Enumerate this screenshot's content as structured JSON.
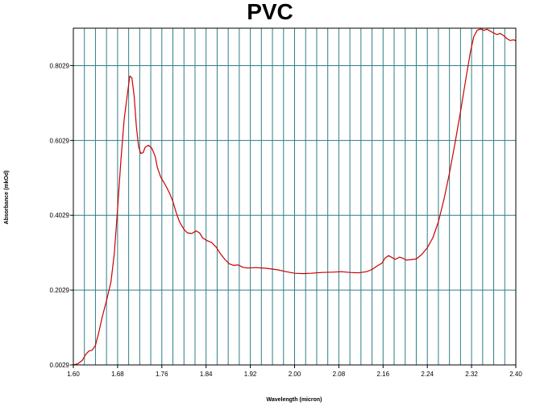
{
  "chart_data": {
    "type": "line",
    "title": "PVC",
    "xlabel": "Wavelength (micron)",
    "ylabel": "Absorbance (mkOd)",
    "xlim": [
      1.6,
      2.4
    ],
    "ylim": [
      0.0029,
      0.9029
    ],
    "x_ticks": [
      "1.60",
      "1.68",
      "1.76",
      "1.84",
      "1.92",
      "2.00",
      "2.08",
      "2.16",
      "2.24",
      "2.32",
      "2.40"
    ],
    "y_ticks": [
      "0.0029",
      "0.2029",
      "0.4029",
      "0.6029",
      "0.8029"
    ],
    "x_tick_values": [
      1.6,
      1.68,
      1.76,
      1.84,
      1.92,
      2.0,
      2.08,
      2.16,
      2.24,
      2.32,
      2.4
    ],
    "y_tick_values": [
      0.0029,
      0.2029,
      0.4029,
      0.6029,
      0.8029
    ],
    "x_minor_step": 0.02,
    "grid": true,
    "colors": {
      "line": "#cc0000",
      "grid": "#2e7f86",
      "frame": "#000000"
    },
    "series": [
      {
        "points": [
          [
            1.6,
            0.003
          ],
          [
            1.608,
            0.006
          ],
          [
            1.616,
            0.015
          ],
          [
            1.622,
            0.03
          ],
          [
            1.628,
            0.04
          ],
          [
            1.634,
            0.042
          ],
          [
            1.64,
            0.055
          ],
          [
            1.646,
            0.09
          ],
          [
            1.652,
            0.13
          ],
          [
            1.66,
            0.175
          ],
          [
            1.668,
            0.225
          ],
          [
            1.674,
            0.3
          ],
          [
            1.68,
            0.42
          ],
          [
            1.686,
            0.55
          ],
          [
            1.692,
            0.66
          ],
          [
            1.698,
            0.73
          ],
          [
            1.702,
            0.775
          ],
          [
            1.706,
            0.77
          ],
          [
            1.71,
            0.72
          ],
          [
            1.714,
            0.64
          ],
          [
            1.718,
            0.585
          ],
          [
            1.722,
            0.568
          ],
          [
            1.726,
            0.57
          ],
          [
            1.73,
            0.585
          ],
          [
            1.736,
            0.59
          ],
          [
            1.742,
            0.582
          ],
          [
            1.748,
            0.56
          ],
          [
            1.752,
            0.53
          ],
          [
            1.758,
            0.505
          ],
          [
            1.766,
            0.485
          ],
          [
            1.774,
            0.462
          ],
          [
            1.78,
            0.44
          ],
          [
            1.786,
            0.41
          ],
          [
            1.792,
            0.385
          ],
          [
            1.8,
            0.365
          ],
          [
            1.806,
            0.356
          ],
          [
            1.814,
            0.354
          ],
          [
            1.822,
            0.361
          ],
          [
            1.828,
            0.356
          ],
          [
            1.834,
            0.342
          ],
          [
            1.842,
            0.335
          ],
          [
            1.85,
            0.33
          ],
          [
            1.858,
            0.318
          ],
          [
            1.866,
            0.3
          ],
          [
            1.874,
            0.285
          ],
          [
            1.882,
            0.273
          ],
          [
            1.89,
            0.269
          ],
          [
            1.898,
            0.27
          ],
          [
            1.906,
            0.264
          ],
          [
            1.914,
            0.262
          ],
          [
            1.93,
            0.263
          ],
          [
            1.95,
            0.261
          ],
          [
            1.97,
            0.257
          ],
          [
            1.985,
            0.252
          ],
          [
            2.0,
            0.248
          ],
          [
            2.015,
            0.247
          ],
          [
            2.03,
            0.248
          ],
          [
            2.05,
            0.25
          ],
          [
            2.07,
            0.251
          ],
          [
            2.085,
            0.252
          ],
          [
            2.1,
            0.25
          ],
          [
            2.115,
            0.249
          ],
          [
            2.13,
            0.252
          ],
          [
            2.14,
            0.258
          ],
          [
            2.15,
            0.268
          ],
          [
            2.158,
            0.275
          ],
          [
            2.164,
            0.289
          ],
          [
            2.17,
            0.295
          ],
          [
            2.176,
            0.29
          ],
          [
            2.182,
            0.285
          ],
          [
            2.19,
            0.291
          ],
          [
            2.196,
            0.288
          ],
          [
            2.202,
            0.283
          ],
          [
            2.21,
            0.284
          ],
          [
            2.22,
            0.286
          ],
          [
            2.23,
            0.298
          ],
          [
            2.24,
            0.316
          ],
          [
            2.25,
            0.343
          ],
          [
            2.26,
            0.385
          ],
          [
            2.27,
            0.445
          ],
          [
            2.28,
            0.515
          ],
          [
            2.29,
            0.595
          ],
          [
            2.3,
            0.68
          ],
          [
            2.31,
            0.77
          ],
          [
            2.318,
            0.84
          ],
          [
            2.324,
            0.88
          ],
          [
            2.33,
            0.897
          ],
          [
            2.336,
            0.901
          ],
          [
            2.342,
            0.897
          ],
          [
            2.348,
            0.9
          ],
          [
            2.354,
            0.895
          ],
          [
            2.36,
            0.89
          ],
          [
            2.366,
            0.886
          ],
          [
            2.372,
            0.889
          ],
          [
            2.378,
            0.883
          ],
          [
            2.384,
            0.875
          ],
          [
            2.39,
            0.87
          ],
          [
            2.396,
            0.872
          ],
          [
            2.4,
            0.869
          ]
        ]
      }
    ]
  }
}
